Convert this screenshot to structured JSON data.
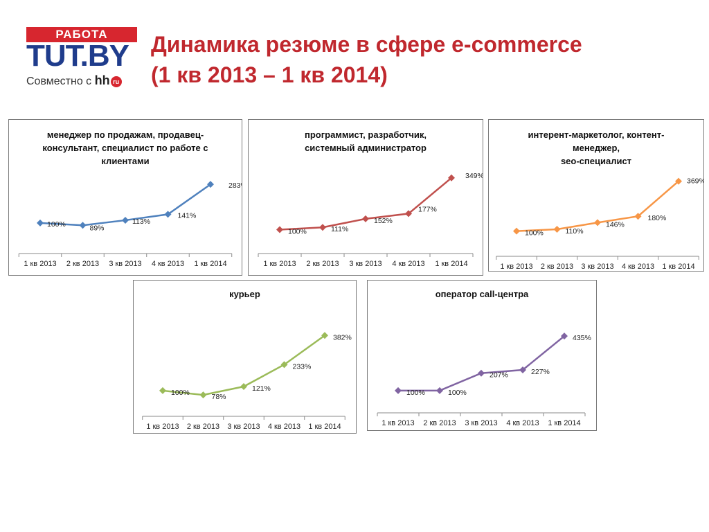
{
  "logo": {
    "top_text": "РАБОТА",
    "main_text": "TUT.BY",
    "sub_text": "Совместно с",
    "hh_text": "hh",
    "ru_text": "ru"
  },
  "page": {
    "title_line1": "Динамика резюме в сфере e-commerce",
    "title_line2": "(1 кв 2013 – 1 кв 2014)"
  },
  "chart_data": [
    {
      "type": "line",
      "title_lines": [
        "менеджер по продажам, продавец-",
        "консультант, специалист по работе с",
        "клиентами"
      ],
      "categories": [
        "1 кв 2013",
        "2 кв 2013",
        "3 кв 2013",
        "4 кв 2013",
        "1 кв 2014"
      ],
      "values": [
        100,
        89,
        113,
        141,
        283
      ],
      "labels": [
        "100%",
        "89%",
        "113%",
        "141%",
        "283%"
      ],
      "color": "#4f81bd"
    },
    {
      "type": "line",
      "title_lines": [
        "программист, разработчик,",
        "системный администратор"
      ],
      "categories": [
        "1 кв 2013",
        "2 кв 2013",
        "3 кв 2013",
        "4 кв 2013",
        "1 кв 2014"
      ],
      "values": [
        100,
        111,
        152,
        177,
        349
      ],
      "labels": [
        "100%",
        "111%",
        "152%",
        "177%",
        "349%"
      ],
      "color": "#c0504d"
    },
    {
      "type": "line",
      "title_lines": [
        "интерент-маркетолог, контент-",
        "менеджер,",
        "seo-специалист"
      ],
      "categories": [
        "1 кв 2013",
        "2 кв 2013",
        "3 кв 2013",
        "4 кв 2013",
        "1 кв 2014"
      ],
      "values": [
        100,
        110,
        146,
        180,
        369
      ],
      "labels": [
        "100%",
        "110%",
        "146%",
        "180%",
        "369%"
      ],
      "color": "#f79646"
    },
    {
      "type": "line",
      "title_lines": [
        "курьер"
      ],
      "categories": [
        "1 кв 2013",
        "2 кв 2013",
        "3 кв 2013",
        "4 кв 2013",
        "1 кв 2014"
      ],
      "values": [
        100,
        78,
        121,
        233,
        382
      ],
      "labels": [
        "100%",
        "78%",
        "121%",
        "233%",
        "382%"
      ],
      "color": "#9bbb59"
    },
    {
      "type": "line",
      "title_lines": [
        "оператор call-центра"
      ],
      "categories": [
        "1 кв 2013",
        "2 кв 2013",
        "3 кв 2013",
        "4 кв 2013",
        "1 кв 2014"
      ],
      "values": [
        100,
        100,
        207,
        227,
        435
      ],
      "labels": [
        "100%",
        "100%",
        "207%",
        "227%",
        "435%"
      ],
      "color": "#8064a2"
    }
  ]
}
